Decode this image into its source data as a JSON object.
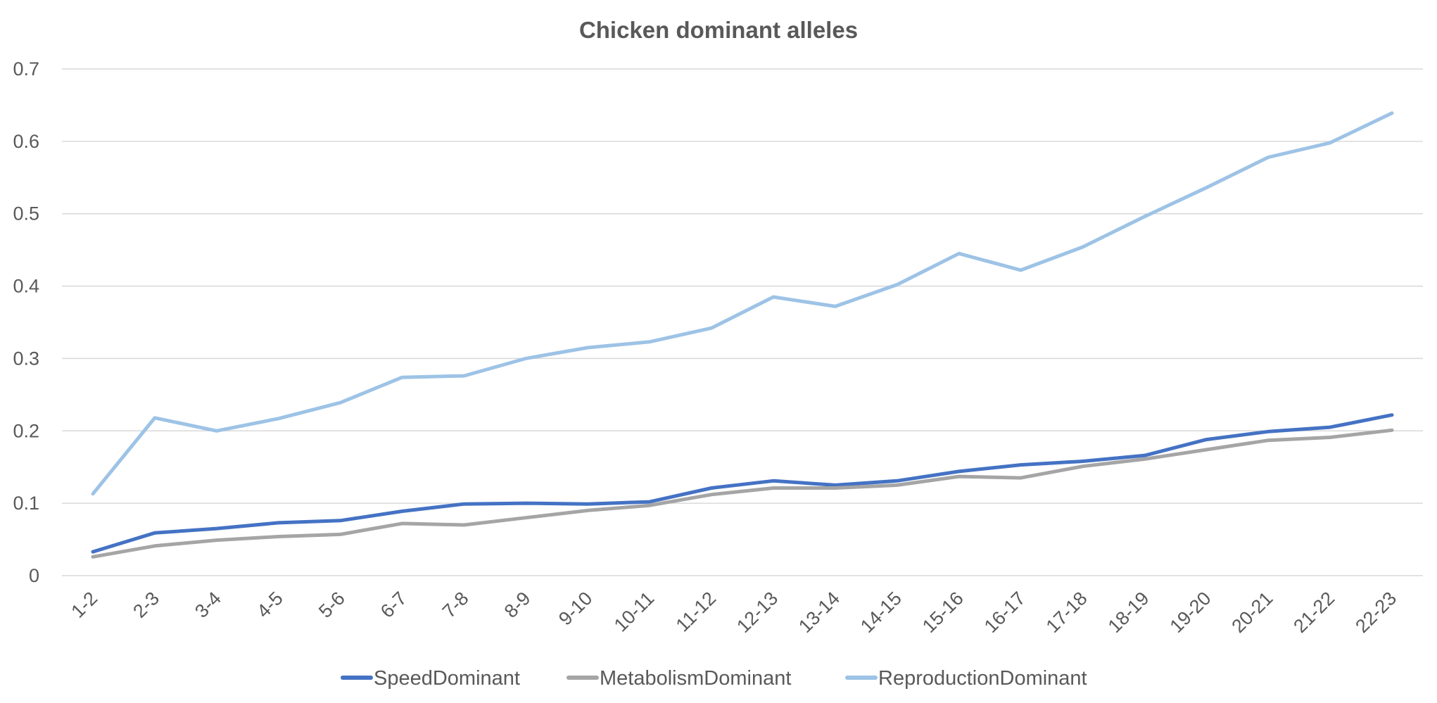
{
  "chart_data": {
    "type": "line",
    "title": "Chicken dominant alleles",
    "xlabel": "",
    "ylabel": "",
    "categories": [
      "1-2",
      "2-3",
      "3-4",
      "4-5",
      "5-6",
      "6-7",
      "7-8",
      "8-9",
      "9-10",
      "10-11",
      "11-12",
      "12-13",
      "13-14",
      "14-15",
      "15-16",
      "16-17",
      "17-18",
      "18-19",
      "19-20",
      "20-21",
      "21-22",
      "22-23"
    ],
    "yticks": [
      "0",
      "0.1",
      "0.2",
      "0.3",
      "0.4",
      "0.5",
      "0.6",
      "0.7"
    ],
    "ylim": [
      0,
      0.7
    ],
    "grid": true,
    "legend_position": "bottom",
    "series": [
      {
        "name": "SpeedDominant",
        "color": "#4472c4",
        "values": [
          0.033,
          0.059,
          0.065,
          0.073,
          0.076,
          0.089,
          0.099,
          0.1,
          0.099,
          0.102,
          0.121,
          0.131,
          0.125,
          0.131,
          0.144,
          0.153,
          0.158,
          0.166,
          0.188,
          0.199,
          0.205,
          0.222
        ]
      },
      {
        "name": "MetabolismDominant",
        "color": "#a5a5a5",
        "values": [
          0.026,
          0.041,
          0.049,
          0.054,
          0.057,
          0.072,
          0.07,
          0.08,
          0.09,
          0.097,
          0.112,
          0.121,
          0.121,
          0.125,
          0.137,
          0.135,
          0.151,
          0.161,
          0.174,
          0.187,
          0.191,
          0.201
        ]
      },
      {
        "name": "ReproductionDominant",
        "color": "#9dc3e6",
        "values": [
          0.113,
          0.218,
          0.2,
          0.217,
          0.239,
          0.274,
          0.276,
          0.3,
          0.315,
          0.323,
          0.342,
          0.385,
          0.372,
          0.402,
          0.445,
          0.422,
          0.454,
          0.496,
          0.536,
          0.578,
          0.598,
          0.639
        ]
      }
    ]
  }
}
